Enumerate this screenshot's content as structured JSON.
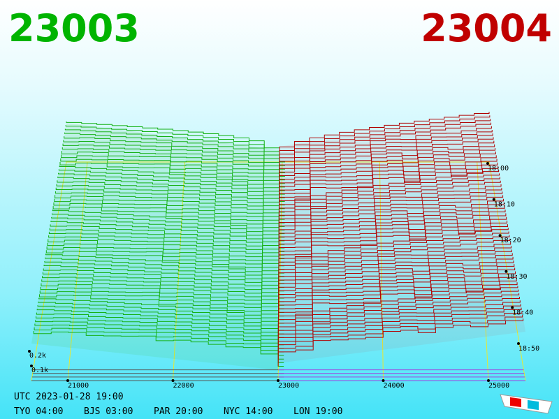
{
  "header": {
    "bid": "23003",
    "ask": "23004"
  },
  "price_axis": {
    "ticks": [
      "21000",
      "22000",
      "23000",
      "24000",
      "25000"
    ]
  },
  "time_axis": {
    "ticks": [
      "18:00",
      "18:10",
      "18:20",
      "18:30",
      "18:40",
      "18:50"
    ]
  },
  "depth_axis": {
    "ticks": [
      "0.2k",
      "0.1k"
    ]
  },
  "clock": {
    "utc": "UTC 2023-01-28 19:00",
    "zones": [
      "TYO 04:00",
      "BJS 03:00",
      "PAR 20:00",
      "NYC 14:00",
      "LON 19:00"
    ]
  }
}
